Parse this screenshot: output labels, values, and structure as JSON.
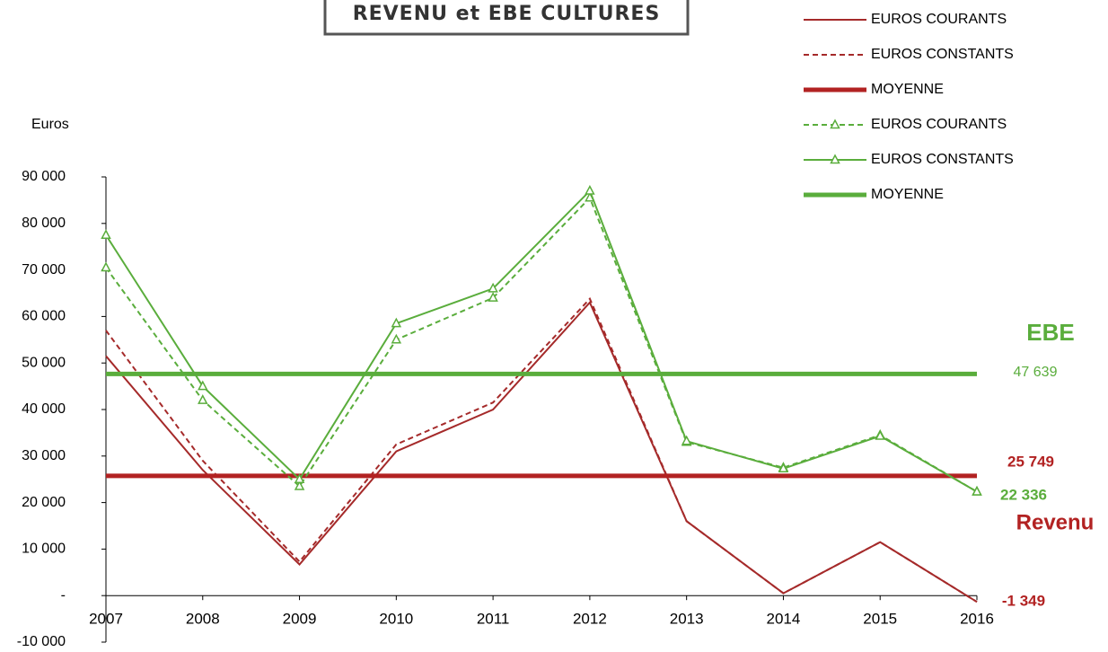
{
  "chart_data": {
    "type": "line",
    "title": "REVENU et EBE CULTURES",
    "y_label": "Euros",
    "categories": [
      "2007",
      "2008",
      "2009",
      "2010",
      "2011",
      "2012",
      "2013",
      "2014",
      "2015",
      "2016"
    ],
    "ylim": [
      -10000,
      90000
    ],
    "yticks": [
      {
        "value": -10000,
        "label": "-10 000"
      },
      {
        "value": 0,
        "label": "-"
      },
      {
        "value": 10000,
        "label": "10 000"
      },
      {
        "value": 20000,
        "label": "20 000"
      },
      {
        "value": 30000,
        "label": "30 000"
      },
      {
        "value": 40000,
        "label": "40 000"
      },
      {
        "value": 50000,
        "label": "50 000"
      },
      {
        "value": 60000,
        "label": "60 000"
      },
      {
        "value": 70000,
        "label": "70 000"
      },
      {
        "value": 80000,
        "label": "80 000"
      },
      {
        "value": 90000,
        "label": "90 000"
      }
    ],
    "series": [
      {
        "name": "EUROS COURANTS",
        "color": "#a52a2a",
        "dash": "none",
        "width": 2,
        "marker": "none",
        "values": [
          51500,
          27000,
          6700,
          31000,
          40000,
          63000,
          16000,
          500,
          11500,
          -1349
        ]
      },
      {
        "name": "EUROS CONSTANTS",
        "color": "#a52a2a",
        "dash": "6,4",
        "width": 2,
        "marker": "none",
        "values": [
          57000,
          29000,
          7300,
          32500,
          41500,
          63800,
          16000,
          500,
          11500,
          -1349
        ]
      },
      {
        "name": "MOYENNE",
        "color": "#b22222",
        "dash": "none",
        "width": 5,
        "marker": "none",
        "values": [
          25749,
          25749,
          25749,
          25749,
          25749,
          25749,
          25749,
          25749,
          25749,
          25749
        ]
      },
      {
        "name": "EUROS COURANTS",
        "color": "#5aad3c",
        "dash": "6,4",
        "width": 2,
        "marker": "triangle",
        "values": [
          70500,
          42000,
          23500,
          55000,
          64000,
          85500,
          33000,
          27500,
          34500,
          22336
        ]
      },
      {
        "name": "EUROS CONSTANTS",
        "color": "#5aad3c",
        "dash": "none",
        "width": 2,
        "marker": "triangle",
        "values": [
          77500,
          45000,
          25000,
          58500,
          66000,
          87000,
          33200,
          27300,
          34300,
          22336
        ]
      },
      {
        "name": "MOYENNE",
        "color": "#5aad3c",
        "dash": "none",
        "width": 5,
        "marker": "none",
        "values": [
          47639,
          47639,
          47639,
          47639,
          47639,
          47639,
          47639,
          47639,
          47639,
          47639
        ]
      }
    ],
    "annotations": [
      {
        "text": "EBE",
        "color": "#5aad3c"
      },
      {
        "text": "47 639",
        "color": "#5aad3c"
      },
      {
        "text": "25 749",
        "color": "#b22222"
      },
      {
        "text": "22 336",
        "color": "#5aad3c"
      },
      {
        "text": "Revenu",
        "color": "#b22222"
      },
      {
        "text": "-1 349",
        "color": "#b22222"
      }
    ]
  }
}
